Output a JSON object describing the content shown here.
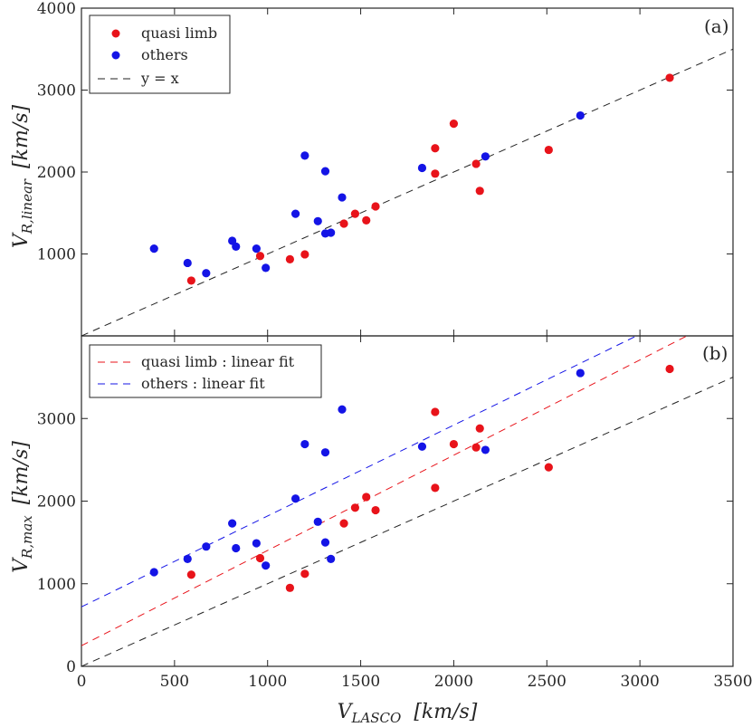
{
  "chart_data": [
    {
      "type": "scatter",
      "panel_label": "(a)",
      "xlim": [
        0,
        3500
      ],
      "ylim": [
        0,
        4000
      ],
      "yticks": [
        "4000",
        "3000",
        "2000",
        "1000"
      ],
      "ylabel_main": "V",
      "ylabel_sub": "R,linear",
      "ylabel_unit": "[km/s]",
      "legend": {
        "placement": "top-left",
        "entries": [
          "quasi limb",
          "others",
          "y = x"
        ]
      },
      "series": [
        {
          "name": "quasi limb",
          "color": "#e8131a",
          "points": [
            [
              590,
              675
            ],
            [
              960,
              975
            ],
            [
              1120,
              935
            ],
            [
              1200,
              995
            ],
            [
              1410,
              1370
            ],
            [
              1470,
              1490
            ],
            [
              1530,
              1410
            ],
            [
              1580,
              1580
            ],
            [
              1900,
              2290
            ],
            [
              1900,
              1980
            ],
            [
              2000,
              2590
            ],
            [
              2120,
              2100
            ],
            [
              2140,
              1770
            ],
            [
              2510,
              2270
            ],
            [
              3160,
              3150
            ]
          ]
        },
        {
          "name": "others",
          "color": "#1414e6",
          "points": [
            [
              390,
              1065
            ],
            [
              570,
              890
            ],
            [
              670,
              765
            ],
            [
              810,
              1160
            ],
            [
              830,
              1090
            ],
            [
              940,
              1065
            ],
            [
              990,
              830
            ],
            [
              1150,
              1490
            ],
            [
              1200,
              2200
            ],
            [
              1270,
              1400
            ],
            [
              1310,
              2010
            ],
            [
              1310,
              1250
            ],
            [
              1340,
              1260
            ],
            [
              1400,
              1690
            ],
            [
              1830,
              2050
            ],
            [
              2170,
              2190
            ],
            [
              2680,
              2690
            ]
          ]
        }
      ],
      "lines": [
        {
          "name": "y = x",
          "color": "#222222",
          "intercept": 0,
          "slope": 1
        }
      ]
    },
    {
      "type": "scatter",
      "panel_label": "(b)",
      "xlim": [
        0,
        3500
      ],
      "ylim": [
        0,
        4000
      ],
      "xticks": [
        "0",
        "500",
        "1000",
        "1500",
        "2000",
        "2500",
        "3000",
        "3500"
      ],
      "yticks": [
        "0",
        "1000",
        "2000",
        "3000"
      ],
      "ylabel_main": "V",
      "ylabel_sub": "R,max",
      "ylabel_unit": "[km/s]",
      "xlabel_main": "V",
      "xlabel_sub": "LASCO",
      "xlabel_unit": "[km/s]",
      "legend": {
        "placement": "top-left",
        "entries": [
          "quasi limb : linear fit",
          "others : linear fit"
        ]
      },
      "series": [
        {
          "name": "quasi limb",
          "color": "#e8131a",
          "points": [
            [
              590,
              1110
            ],
            [
              960,
              1310
            ],
            [
              1120,
              950
            ],
            [
              1200,
              1120
            ],
            [
              1410,
              1730
            ],
            [
              1470,
              1920
            ],
            [
              1530,
              2050
            ],
            [
              1580,
              1890
            ],
            [
              1900,
              3080
            ],
            [
              1900,
              2160
            ],
            [
              2000,
              2690
            ],
            [
              2120,
              2650
            ],
            [
              2140,
              2880
            ],
            [
              2510,
              2410
            ],
            [
              3160,
              3600
            ]
          ]
        },
        {
          "name": "others",
          "color": "#1414e6",
          "points": [
            [
              390,
              1140
            ],
            [
              570,
              1300
            ],
            [
              670,
              1450
            ],
            [
              810,
              1730
            ],
            [
              830,
              1430
            ],
            [
              940,
              1490
            ],
            [
              990,
              1220
            ],
            [
              1150,
              2030
            ],
            [
              1200,
              2690
            ],
            [
              1270,
              1750
            ],
            [
              1310,
              2590
            ],
            [
              1310,
              1500
            ],
            [
              1340,
              1300
            ],
            [
              1400,
              3110
            ],
            [
              1830,
              2660
            ],
            [
              2170,
              2620
            ],
            [
              2680,
              3550
            ]
          ]
        }
      ],
      "lines": [
        {
          "name": "quasi limb : linear fit",
          "color": "#e8131a",
          "intercept": 250,
          "slope": 1.153
        },
        {
          "name": "others : linear fit",
          "color": "#1414e6",
          "intercept": 720,
          "slope": 1.1
        },
        {
          "name": "y = x",
          "color": "#222222",
          "intercept": 0,
          "slope": 1
        }
      ]
    }
  ]
}
